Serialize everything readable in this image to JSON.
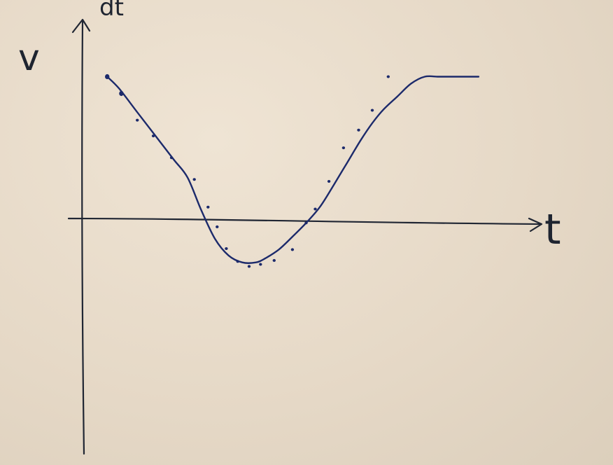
{
  "chart_data": {
    "type": "line",
    "title": "",
    "xlabel": "t",
    "ylabel": "v",
    "ylabel_fragment": "dt",
    "xlim": [
      0,
      10
    ],
    "ylim": [
      -1.5,
      1.3
    ],
    "grid": false,
    "legend": "none",
    "ink_color": "#1c2a6b",
    "axis_color": "#202633",
    "series": [
      {
        "style": "curve",
        "x": [
          0.54,
          0.8,
          1.2,
          1.6,
          2.0,
          2.3,
          2.6,
          2.9,
          3.2,
          3.5,
          3.8,
          4.0,
          4.3,
          4.6,
          4.9,
          5.2,
          5.5,
          5.8,
          6.1,
          6.35,
          6.6,
          6.9,
          7.2,
          7.5,
          7.8,
          8.1,
          8.4,
          8.68
        ],
        "y": [
          1.02,
          0.9,
          0.66,
          0.42,
          0.18,
          0.0,
          -0.33,
          -0.62,
          -0.79,
          -0.86,
          -0.86,
          -0.82,
          -0.73,
          -0.6,
          -0.46,
          -0.3,
          -0.08,
          0.15,
          0.38,
          0.55,
          0.69,
          0.82,
          0.95,
          1.02,
          1.02,
          1.02,
          1.02,
          1.02
        ]
      },
      {
        "style": "points",
        "x": [
          0.54,
          0.85,
          1.2,
          1.55,
          1.95,
          2.45,
          2.75,
          2.95,
          3.15,
          3.4,
          3.65,
          3.9,
          4.2,
          4.6,
          4.9,
          5.1,
          5.4,
          5.72,
          6.05,
          6.35,
          6.7
        ],
        "y": [
          1.02,
          0.85,
          0.58,
          0.42,
          0.2,
          -0.02,
          -0.3,
          -0.5,
          -0.72,
          -0.85,
          -0.9,
          -0.88,
          -0.84,
          -0.73,
          -0.46,
          -0.32,
          -0.04,
          0.3,
          0.48,
          0.68,
          1.02
        ]
      }
    ]
  }
}
